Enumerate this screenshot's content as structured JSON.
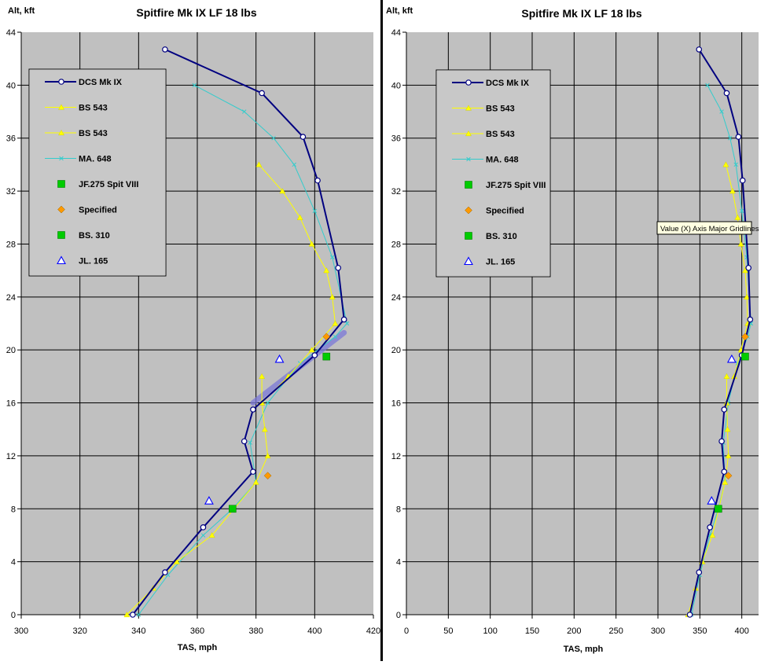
{
  "chart_data": [
    {
      "type": "line",
      "title": "Spitfire Mk IX LF 18 lbs",
      "xlabel": "TAS, mph",
      "ylabel": "Alt, kft",
      "xlim": [
        300,
        420
      ],
      "ylim": [
        0,
        44
      ],
      "x_ticks": [
        "300",
        "320",
        "340",
        "360",
        "380",
        "400",
        "420"
      ],
      "y_ticks": [
        "0",
        "4",
        "8",
        "12",
        "16",
        "20",
        "24",
        "28",
        "32",
        "36",
        "40",
        "44"
      ],
      "grid": true,
      "legend_position": "top-left",
      "series": [
        {
          "name": "DCS Mk IX",
          "color": "#000080",
          "marker": "circle-open",
          "line": true,
          "x": [
            338,
            349,
            362,
            379,
            376,
            379,
            400,
            410,
            408,
            401,
            396,
            382,
            349
          ],
          "y": [
            0,
            3.2,
            6.6,
            10.8,
            13.1,
            15.5,
            19.6,
            22.3,
            26.2,
            32.8,
            36.1,
            39.4,
            42.7
          ]
        },
        {
          "name": "BS 543",
          "color": "#ffff00",
          "marker": "triangle",
          "line": true,
          "x": [
            336,
            345,
            353,
            365,
            380,
            384,
            383,
            382,
            391,
            399,
            407,
            406,
            404,
            399,
            395,
            389,
            381
          ],
          "y": [
            0,
            2,
            4,
            6,
            10,
            12,
            14,
            16,
            18,
            20,
            22,
            24,
            26,
            28,
            30,
            32,
            34
          ]
        },
        {
          "name": "BS 543",
          "color": "#ffff00",
          "marker": "triangle",
          "line": true,
          "x": [
            382,
            382
          ],
          "y": [
            16,
            18
          ]
        },
        {
          "name": "MA. 648",
          "color": "#33cccc",
          "marker": "x",
          "line": true,
          "x": [
            340,
            350,
            362,
            372,
            380,
            378,
            384,
            395,
            407,
            411,
            406,
            400,
            393,
            386,
            376,
            359
          ],
          "y": [
            0,
            3,
            6,
            8,
            10,
            13,
            16,
            19,
            21,
            22,
            27,
            30.5,
            34,
            36,
            38,
            40
          ]
        },
        {
          "name": "JF.275 Spit VIII",
          "color": "#00cc00",
          "marker": "square",
          "line": false,
          "x": [
            372
          ],
          "y": [
            8
          ]
        },
        {
          "name": "Specified",
          "color": "#ff9900",
          "marker": "diamond",
          "line": false,
          "x": [
            384,
            404
          ],
          "y": [
            10.5,
            21
          ]
        },
        {
          "name": "BS. 310",
          "color": "#00cc00",
          "marker": "square",
          "line": false,
          "x": [
            404
          ],
          "y": [
            19.5
          ]
        },
        {
          "name": "JL. 165",
          "color": "#0000ff",
          "marker": "triangle-open",
          "line": false,
          "x": [
            364,
            388
          ],
          "y": [
            8.6,
            19.3
          ]
        }
      ]
    },
    {
      "type": "line",
      "title": "Spitfire Mk IX LF 18 lbs",
      "xlabel": "TAS, mph",
      "ylabel": "Alt, kft",
      "xlim": [
        0,
        420
      ],
      "ylim": [
        0,
        44
      ],
      "x_ticks": [
        "0",
        "50",
        "100",
        "150",
        "200",
        "250",
        "300",
        "350",
        "400"
      ],
      "y_ticks": [
        "0",
        "4",
        "8",
        "12",
        "16",
        "20",
        "24",
        "28",
        "32",
        "36",
        "40",
        "44"
      ],
      "grid": true,
      "legend_position": "top-left",
      "tooltip": "Value (X) Axis Major Gridlines",
      "series": [
        {
          "name": "DCS Mk IX",
          "color": "#000080",
          "marker": "circle-open",
          "line": true,
          "x": [
            338,
            349,
            362,
            379,
            376,
            379,
            400,
            410,
            408,
            401,
            396,
            382,
            349
          ],
          "y": [
            0,
            3.2,
            6.6,
            10.8,
            13.1,
            15.5,
            19.6,
            22.3,
            26.2,
            32.8,
            36.1,
            39.4,
            42.7
          ]
        },
        {
          "name": "BS 543",
          "color": "#ffff00",
          "marker": "triangle",
          "line": true,
          "x": [
            336,
            345,
            353,
            365,
            380,
            384,
            383,
            382,
            391,
            399,
            407,
            406,
            404,
            399,
            395,
            389,
            381
          ],
          "y": [
            0,
            2,
            4,
            6,
            10,
            12,
            14,
            16,
            18,
            20,
            22,
            24,
            26,
            28,
            30,
            32,
            34
          ]
        },
        {
          "name": "BS 543",
          "color": "#ffff00",
          "marker": "triangle",
          "line": true,
          "x": [
            382,
            382
          ],
          "y": [
            16,
            18
          ]
        },
        {
          "name": "MA. 648",
          "color": "#33cccc",
          "marker": "x",
          "line": true,
          "x": [
            340,
            350,
            362,
            372,
            380,
            378,
            384,
            395,
            407,
            411,
            406,
            400,
            393,
            386,
            376,
            359
          ],
          "y": [
            0,
            3,
            6,
            8,
            10,
            13,
            16,
            19,
            21,
            22,
            27,
            30.5,
            34,
            36,
            38,
            40
          ]
        },
        {
          "name": "JF.275 Spit VIII",
          "color": "#00cc00",
          "marker": "square",
          "line": false,
          "x": [
            372
          ],
          "y": [
            8
          ]
        },
        {
          "name": "Specified",
          "color": "#ff9900",
          "marker": "diamond",
          "line": false,
          "x": [
            384,
            404
          ],
          "y": [
            10.5,
            21
          ]
        },
        {
          "name": "BS. 310",
          "color": "#00cc00",
          "marker": "square",
          "line": false,
          "x": [
            404
          ],
          "y": [
            19.5
          ]
        },
        {
          "name": "JL. 165",
          "color": "#0000ff",
          "marker": "triangle-open",
          "line": false,
          "x": [
            364,
            388
          ],
          "y": [
            8.6,
            19.3
          ]
        }
      ]
    }
  ]
}
